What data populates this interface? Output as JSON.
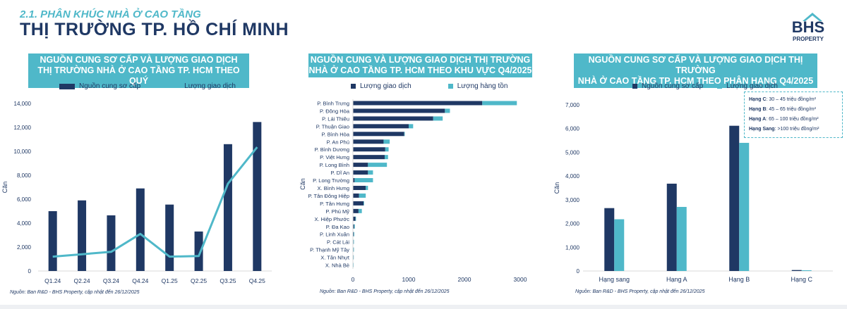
{
  "header": {
    "subtitle": "2.1. PHÂN KHÚC NHÀ Ở CAO TẦNG",
    "title": "THỊ TRƯỜNG TP. HỒ CHÍ MINH",
    "logo_text": "BHS",
    "logo_sub": "PROPERTY"
  },
  "colors": {
    "navy": "#1f3864",
    "teal": "#4fb8c9",
    "grid": "#d9d9d9"
  },
  "panels": [
    {
      "title_line1": "NGUỒN CUNG SƠ CẤP VÀ LƯỢNG GIAO DỊCH",
      "title_line2": "THỊ TRƯỜNG NHÀ Ở CAO TẦNG TP. HCM THEO QUÝ",
      "legend": [
        "Nguồn cung sơ cấp",
        "Lượng giao dịch"
      ],
      "source": "Nguồn: Ban R&D - BHS Property, cập nhật đến 26/12/2025"
    },
    {
      "title_line1": "NGUỒN CUNG VÀ LƯỢNG GIAO DỊCH THỊ TRƯỜNG",
      "title_line2": "NHÀ Ở CAO TẦNG TP. HCM THEO KHU VỰC Q4/2025",
      "legend": [
        "Lượng giao dịch",
        "Lượng hàng tồn"
      ],
      "source": "Nguồn: Ban R&D - BHS Property, cập nhật đến 26/12/2025"
    },
    {
      "title_line1": "NGUỒN CUNG SƠ CẤP VÀ LƯỢNG GIAO DỊCH THỊ TRƯỜNG",
      "title_line2": "NHÀ Ở CAO TẦNG TP. HCM THEO PHÂN HẠNG Q4/2025",
      "legend": [
        "Nguồn cung sơ cấp",
        "Lượng giao dịch"
      ],
      "source": "Nguồn: Ban R&D - BHS Property, cập nhật đến 26/12/2025",
      "notes": [
        {
          "label": "Hạng C",
          "text": ": 30 – 45 triệu đồng/m²"
        },
        {
          "label": "Hạng B",
          "text": ": 45 – 65 triệu đồng/m²"
        },
        {
          "label": "Hạng A",
          "text": ": 65 – 100 triệu đồng/m²"
        },
        {
          "label": "Hạng Sang",
          "text": ": >100 triệu đồng/m²"
        }
      ]
    }
  ],
  "chart_data": [
    {
      "type": "bar",
      "title": "NGUỒN CUNG SƠ CẤP VÀ LƯỢNG GIAO DỊCH THỊ TRƯỜNG NHÀ Ở CAO TẦNG TP. HCM THEO QUÝ",
      "ylabel": "Căn",
      "ylim": [
        0,
        14000
      ],
      "yticks": [
        0,
        2000,
        4000,
        6000,
        8000,
        10000,
        12000,
        14000
      ],
      "ytick_labels": [
        "0",
        "2,000",
        "4,000",
        "6,000",
        "8,000",
        "10,000",
        "12,000",
        "14,000"
      ],
      "categories": [
        "Q1.24",
        "Q2.24",
        "Q3.24",
        "Q4.24",
        "Q1.25",
        "Q2.25",
        "Q3.25",
        "Q4.25"
      ],
      "series": [
        {
          "name": "Nguồn cung sơ cấp",
          "kind": "bar",
          "values": [
            5000,
            5900,
            4650,
            6900,
            5550,
            3300,
            10600,
            12450
          ]
        },
        {
          "name": "Lượng giao dịch",
          "kind": "line",
          "values": [
            1200,
            1400,
            1600,
            3100,
            1200,
            1250,
            7300,
            10350
          ]
        }
      ]
    },
    {
      "type": "bar",
      "orientation": "horizontal",
      "stacked": true,
      "title": "NGUỒN CUNG VÀ LƯỢNG GIAO DỊCH THỊ TRƯỜNG NHÀ Ở CAO TẦNG TP. HCM THEO KHU VỰC Q4/2025",
      "ylabel": "Căn",
      "xlim": [
        0,
        3000
      ],
      "xticks": [
        0,
        1000,
        2000,
        3000
      ],
      "categories": [
        "P. Bình Trưng",
        "P. Đông Hòa",
        "P. Lái Thiêu",
        "P. Thuận Giao",
        "P. Bình Hòa",
        "P. An Phú",
        "P. Bình Dương",
        "P. Việt Hưng",
        "P. Long Bình",
        "P. Dĩ An",
        "P. Long Trường",
        "X. Bình Hưng",
        "P. Tân Đông Hiệp",
        "P. Tân Hưng",
        "P. Phú Mỹ",
        "X. Hiệp Phước",
        "P. Đa Kao",
        "P. Linh Xuân",
        "P. Cát Lái",
        "P. Thạnh Mỹ Tây",
        "X. Tân Nhựt",
        "X. Nhà Bè"
      ],
      "series": [
        {
          "name": "Lượng giao dịch",
          "values": [
            2320,
            1650,
            1440,
            1000,
            920,
            550,
            580,
            570,
            270,
            270,
            30,
            230,
            110,
            190,
            100,
            45,
            20,
            15,
            10,
            10,
            10,
            8
          ]
        },
        {
          "name": "Lượng hàng tồn",
          "values": [
            620,
            90,
            170,
            80,
            10,
            110,
            60,
            60,
            340,
            90,
            330,
            40,
            120,
            10,
            60,
            10,
            15,
            10,
            8,
            8,
            5,
            5
          ]
        }
      ]
    },
    {
      "type": "bar",
      "title": "NGUỒN CUNG SƠ CẤP VÀ LƯỢNG GIAO DỊCH THỊ TRƯỜNG NHÀ Ở CAO TẦNG TP. HCM THEO PHÂN HẠNG Q4/2025",
      "ylabel": "Căn",
      "ylim": [
        0,
        7000
      ],
      "yticks": [
        0,
        1000,
        2000,
        3000,
        4000,
        5000,
        6000,
        7000
      ],
      "ytick_labels": [
        "0",
        "1,000",
        "2,000",
        "3,000",
        "4,000",
        "5,000",
        "6,000",
        "7,000"
      ],
      "categories": [
        "Hạng sang",
        "Hạng A",
        "Hạng B",
        "Hạng C"
      ],
      "series": [
        {
          "name": "Nguồn cung sơ cấp",
          "values": [
            2650,
            3680,
            6120,
            40
          ]
        },
        {
          "name": "Lượng giao dịch",
          "values": [
            2180,
            2700,
            5400,
            30
          ]
        }
      ]
    }
  ]
}
